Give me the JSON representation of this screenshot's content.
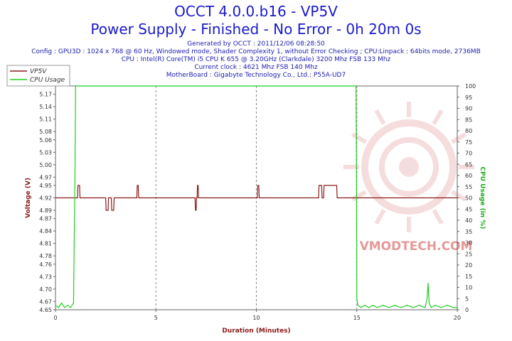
{
  "header": {
    "title_line1": "OCCT 4.0.0.b16 - VP5V",
    "title_line2": "Power Supply - Finished - No Error - 0h 20m 0s",
    "info_lines": [
      "Generated by OCCT : 2011/12/06 08:28:50",
      "Config : GPU3D : 1024 x 768 @ 60 Hz, Windowed mode, Shader Complexity 1, without Error Checking ; CPU:Linpack : 64bits mode, 2736MB",
      "CPU : Intel(R) Core(TM) i5 CPU K 655 @ 3.20GHz (Clarkdale) 3200 Mhz FSB 133 Mhz",
      "Current clock : 4621 Mhz FSB 140 Mhz",
      "MotherBoard : Gigabyte Technology Co., Ltd.: P55A-UD7"
    ]
  },
  "watermark": "VMODTECH.COM",
  "colors": {
    "vp5v": "#8b1a1a",
    "cpu": "#22cc22",
    "title": "#1a1acc"
  },
  "chart_data": {
    "type": "line",
    "xlabel": "Duration (Minutes)",
    "ylabel_left": "Voltage (V)",
    "ylabel_right": "CPU Usage (in %)",
    "xlim": [
      0,
      20
    ],
    "ylim_left": [
      4.65,
      5.19
    ],
    "ylim_right": [
      0,
      100
    ],
    "x_ticks": [
      "0",
      "5",
      "10",
      "15",
      "20"
    ],
    "y_ticks_left": [
      "4.65",
      "4.67",
      "4.70",
      "4.73",
      "4.76",
      "4.78",
      "4.81",
      "4.84",
      "4.87",
      "4.89",
      "4.92",
      "4.95",
      "4.97",
      "5.00",
      "5.03",
      "5.06",
      "5.08",
      "5.11",
      "5.14",
      "5.17"
    ],
    "y_ticks_right": [
      "0",
      "5",
      "10",
      "15",
      "20",
      "25",
      "30",
      "35",
      "40",
      "45",
      "50",
      "55",
      "60",
      "65",
      "70",
      "75",
      "80",
      "85",
      "90",
      "95",
      "100"
    ],
    "legend": [
      "VP5V",
      "CPU Usage"
    ],
    "legend_position": "top-left",
    "grid": true,
    "series": [
      {
        "name": "VP5V",
        "axis": "left",
        "x": [
          0,
          1.1,
          1.12,
          1.2,
          1.22,
          2.5,
          2.52,
          2.62,
          2.64,
          2.78,
          2.8,
          2.9,
          2.92,
          4.05,
          4.07,
          4.12,
          4.14,
          6.95,
          6.97,
          7.0,
          7.02,
          7.05,
          7.07,
          7.1,
          7.12,
          10.05,
          10.07,
          10.12,
          10.14,
          13.1,
          13.12,
          13.25,
          13.27,
          13.35,
          13.37,
          14.0,
          14.02,
          14.08,
          14.1,
          20
        ],
        "y": [
          4.92,
          4.92,
          4.95,
          4.95,
          4.92,
          4.92,
          4.89,
          4.89,
          4.92,
          4.92,
          4.89,
          4.89,
          4.92,
          4.92,
          4.95,
          4.95,
          4.92,
          4.92,
          4.89,
          4.89,
          4.92,
          4.92,
          4.95,
          4.95,
          4.92,
          4.92,
          4.95,
          4.95,
          4.92,
          4.92,
          4.95,
          4.95,
          4.92,
          4.92,
          4.95,
          4.95,
          4.92,
          4.92,
          4.92,
          4.92
        ]
      },
      {
        "name": "CPU Usage",
        "axis": "right",
        "x": [
          0,
          0.15,
          0.3,
          0.45,
          0.6,
          0.75,
          0.9,
          0.97,
          1.0,
          1.02,
          1.05,
          14.96,
          14.98,
          15.0,
          15.05,
          15.2,
          15.4,
          15.6,
          15.8,
          16.0,
          16.3,
          16.6,
          16.9,
          17.2,
          17.5,
          17.8,
          18.1,
          18.4,
          18.5,
          18.55,
          18.6,
          18.7,
          18.9,
          19.2,
          19.5,
          19.8,
          20
        ],
        "y": [
          2,
          1,
          3,
          1,
          2,
          1,
          3,
          60,
          100,
          100,
          100,
          100,
          70,
          5,
          2,
          1,
          2,
          1,
          2,
          1,
          2,
          1,
          2,
          1,
          2,
          1,
          2,
          1,
          5,
          12,
          3,
          1,
          2,
          1,
          2,
          1,
          1
        ]
      }
    ]
  }
}
